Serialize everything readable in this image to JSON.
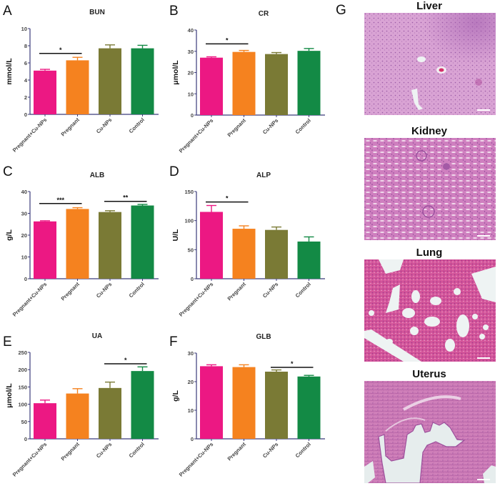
{
  "figure": {
    "colors": {
      "Pregnant+Cu-NPs": "#ec1883",
      "Pregnant": "#f5821f",
      "Cu-NPs": "#7a7a35",
      "Control": "#138a45",
      "axis": "#3b3b7a",
      "text": "#222222"
    },
    "panel_g_label": "G",
    "histology": [
      {
        "label": "Liver"
      },
      {
        "label": "Kidney"
      },
      {
        "label": "Lung"
      },
      {
        "label": "Uterus"
      }
    ]
  },
  "chart_data": [
    {
      "panel": "A",
      "type": "bar",
      "title": "BUN",
      "ylabel": "mmol/L",
      "xlabel": "",
      "categories": [
        "Pregnant+Cu-NPs",
        "Pregnant",
        "Cu-NPs",
        "Control"
      ],
      "values": [
        5.1,
        6.3,
        7.7,
        7.7
      ],
      "errors": [
        0.15,
        0.35,
        0.4,
        0.35
      ],
      "ylim": [
        0,
        10
      ],
      "yticks": [
        0,
        2,
        4,
        6,
        8,
        10
      ],
      "significance": [
        {
          "from": 0,
          "to": 1,
          "label": "*",
          "y": 7.1
        }
      ],
      "grid": false,
      "legend": "none"
    },
    {
      "panel": "B",
      "type": "bar",
      "title": "CR",
      "ylabel": "μmol/L",
      "xlabel": "",
      "categories": [
        "Pregnant+Cu-NPs",
        "Pregnant",
        "Cu-NPs",
        "Control"
      ],
      "values": [
        27.0,
        29.7,
        28.7,
        30.2
      ],
      "errors": [
        0.4,
        0.7,
        0.7,
        1.1
      ],
      "ylim": [
        0,
        40
      ],
      "yticks": [
        0,
        10,
        20,
        30,
        40
      ],
      "significance": [
        {
          "from": 0,
          "to": 1,
          "label": "*",
          "y": 33.5
        }
      ],
      "grid": false,
      "legend": "none"
    },
    {
      "panel": "C",
      "type": "bar",
      "title": "ALB",
      "ylabel": "g/L",
      "xlabel": "",
      "categories": [
        "Pregnant+Cu-NPs",
        "Pregnant",
        "Cu-NPs",
        "Control"
      ],
      "values": [
        26.3,
        32.0,
        30.6,
        33.6
      ],
      "errors": [
        0.3,
        0.6,
        0.6,
        0.5
      ],
      "ylim": [
        0,
        40
      ],
      "yticks": [
        0,
        10,
        20,
        30,
        40
      ],
      "significance": [
        {
          "from": 0,
          "to": 1,
          "label": "***",
          "y": 34.5
        },
        {
          "from": 2,
          "to": 3,
          "label": "**",
          "y": 35.5
        }
      ],
      "grid": false,
      "legend": "none"
    },
    {
      "panel": "D",
      "type": "bar",
      "title": "ALP",
      "ylabel": "U/L",
      "xlabel": "",
      "categories": [
        "Pregnant+Cu-NPs",
        "Pregnant",
        "Cu-NPs",
        "Control"
      ],
      "values": [
        115,
        86,
        84,
        64
      ],
      "errors": [
        11,
        5,
        5,
        8
      ],
      "ylim": [
        0,
        150
      ],
      "yticks": [
        0,
        50,
        100,
        150
      ],
      "significance": [
        {
          "from": 0,
          "to": 1,
          "label": "*",
          "y": 132
        }
      ],
      "grid": false,
      "legend": "none"
    },
    {
      "panel": "E",
      "type": "bar",
      "title": "UA",
      "ylabel": "μmol/L",
      "xlabel": "",
      "categories": [
        "Pregnant+Cu-NPs",
        "Pregnant",
        "Cu-NPs",
        "Control"
      ],
      "values": [
        103,
        131,
        147,
        196
      ],
      "errors": [
        9,
        14,
        17,
        12
      ],
      "ylim": [
        0,
        250
      ],
      "yticks": [
        0,
        50,
        100,
        150,
        200,
        250
      ],
      "significance": [
        {
          "from": 2,
          "to": 3,
          "label": "*",
          "y": 217
        }
      ],
      "grid": false,
      "legend": "none"
    },
    {
      "panel": "F",
      "type": "bar",
      "title": "GLB",
      "ylabel": "g/L",
      "xlabel": "",
      "categories": [
        "Pregnant+Cu-NPs",
        "Pregnant",
        "Cu-NPs",
        "Control"
      ],
      "values": [
        25.4,
        25.1,
        23.5,
        21.8
      ],
      "errors": [
        0.5,
        0.8,
        0.6,
        0.4
      ],
      "ylim": [
        0,
        30
      ],
      "yticks": [
        0,
        10,
        20,
        30
      ],
      "significance": [
        {
          "from": 2,
          "to": 3,
          "label": "*",
          "y": 25
        }
      ],
      "grid": false,
      "legend": "none"
    }
  ]
}
